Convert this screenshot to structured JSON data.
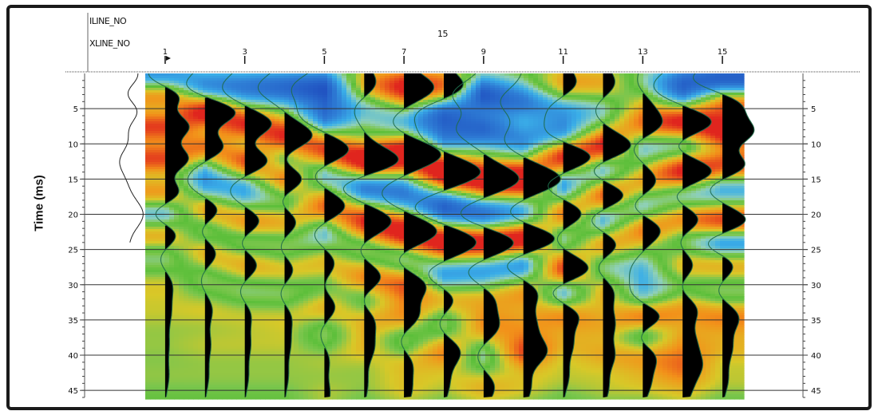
{
  "chart_data": {
    "type": "heatmap",
    "subtype": "seismic-wiggle-variable-area-over-color-section",
    "header": {
      "row1_label": "ILINE_NO",
      "row2_label": "XLINE_NO",
      "iline_value": "15"
    },
    "ylabel": "Time (ms)",
    "y_axis": {
      "reversed": true,
      "range": [
        0,
        46
      ],
      "ticks": [
        5,
        10,
        15,
        20,
        25,
        30,
        35,
        40,
        45
      ],
      "minor_step": 1
    },
    "x_axis": {
      "traces": [
        1,
        2,
        3,
        4,
        5,
        6,
        7,
        8,
        9,
        10,
        11,
        12,
        13,
        14,
        15
      ],
      "tick_labels": [
        "1",
        "3",
        "5",
        "7",
        "9",
        "11",
        "13",
        "15"
      ]
    },
    "gridlines": true,
    "wavelet_width_ms": 2.6,
    "colors": {
      "background": "#5cbf3a",
      "positive": "#f2921a",
      "positive_strong": "#e0251e",
      "negative": "#3aaee8",
      "negative_strong": "#1a3fb8",
      "fill": "#000000",
      "trace": "#1f6b4a"
    },
    "traces": [
      {
        "trace": 1,
        "events": [
          [
            1,
            -0.8
          ],
          [
            3,
            1.0
          ],
          [
            5,
            -0.5
          ],
          [
            7.5,
            0.9
          ],
          [
            10,
            -0.4
          ],
          [
            12,
            0.9
          ],
          [
            14.5,
            -0.3
          ],
          [
            17,
            0.6
          ],
          [
            20,
            -0.6
          ],
          [
            22.5,
            0.5
          ],
          [
            26,
            -0.2
          ],
          [
            30,
            0.2
          ],
          [
            34,
            0.15
          ],
          [
            38.5,
            0.1
          ],
          [
            43,
            0.1
          ]
        ]
      },
      {
        "trace": 2,
        "events": [
          [
            2,
            -0.6
          ],
          [
            5.5,
            1.0
          ],
          [
            8,
            -0.3
          ],
          [
            10.5,
            0.7
          ],
          [
            13,
            -0.3
          ],
          [
            16,
            -0.4
          ],
          [
            19.5,
            0.5
          ],
          [
            22,
            -0.3
          ],
          [
            25.5,
            0.35
          ],
          [
            29,
            -0.15
          ],
          [
            33.5,
            0.2
          ],
          [
            38.5,
            0.15
          ],
          [
            43,
            0.1
          ]
        ]
      },
      {
        "trace": 3,
        "events": [
          [
            2,
            -0.6
          ],
          [
            7.5,
            0.9
          ],
          [
            9.5,
            -0.4
          ],
          [
            12.5,
            0.8
          ],
          [
            15,
            -0.3
          ],
          [
            17.5,
            -0.3
          ],
          [
            21,
            0.5
          ],
          [
            24,
            -0.3
          ],
          [
            27,
            0.4
          ],
          [
            31,
            -0.2
          ],
          [
            34,
            0.2
          ],
          [
            38.5,
            0.15
          ],
          [
            43,
            0.1
          ]
        ]
      },
      {
        "trace": 4,
        "events": [
          [
            2,
            -0.7
          ],
          [
            9,
            0.8
          ],
          [
            12,
            -0.3
          ],
          [
            15,
            0.6
          ],
          [
            18,
            -0.3
          ],
          [
            21,
            0.4
          ],
          [
            24.5,
            -0.2
          ],
          [
            28,
            0.3
          ],
          [
            31,
            -0.2
          ],
          [
            34.5,
            0.2
          ],
          [
            38.5,
            0.15
          ],
          [
            43,
            0.1
          ]
        ]
      },
      {
        "trace": 5,
        "events": [
          [
            2,
            -0.8
          ],
          [
            6,
            -0.6
          ],
          [
            11,
            0.75
          ],
          [
            14,
            -0.4
          ],
          [
            19,
            0.6
          ],
          [
            22.5,
            -0.35
          ],
          [
            27,
            0.3
          ],
          [
            30.5,
            -0.15
          ],
          [
            33,
            0.35
          ],
          [
            37,
            -0.15
          ],
          [
            40.5,
            0.15
          ],
          [
            45.5,
            0.15
          ]
        ]
      },
      {
        "trace": 6,
        "events": [
          [
            1.5,
            0.35
          ],
          [
            5,
            -0.3
          ],
          [
            12.5,
            1.0
          ],
          [
            16,
            -0.7
          ],
          [
            21,
            0.75
          ],
          [
            25,
            -0.2
          ],
          [
            29,
            0.5
          ],
          [
            32,
            -0.2
          ],
          [
            35,
            0.3
          ],
          [
            39,
            0.25
          ],
          [
            44,
            0.1
          ]
        ]
      },
      {
        "trace": 7,
        "events": [
          [
            2,
            0.8
          ],
          [
            7,
            -0.35
          ],
          [
            11.5,
            1.0
          ],
          [
            17,
            -0.6
          ],
          [
            22.5,
            0.9
          ],
          [
            26.5,
            -0.3
          ],
          [
            30,
            0.6
          ],
          [
            34.5,
            0.4
          ],
          [
            38,
            -0.2
          ],
          [
            41,
            0.25
          ],
          [
            45,
            0.2
          ]
        ]
      },
      {
        "trace": 8,
        "events": [
          [
            2,
            0.6
          ],
          [
            5.5,
            -0.7
          ],
          [
            9,
            -0.5
          ],
          [
            14,
            1.0
          ],
          [
            19,
            -0.8
          ],
          [
            24,
            0.9
          ],
          [
            28.5,
            -0.5
          ],
          [
            32,
            0.35
          ],
          [
            35.5,
            -0.2
          ],
          [
            39.5,
            0.45
          ],
          [
            44,
            0.15
          ]
        ]
      },
      {
        "trace": 9,
        "events": [
          [
            3,
            -0.8
          ],
          [
            8,
            -0.7
          ],
          [
            15,
            0.95
          ],
          [
            20,
            -0.7
          ],
          [
            24,
            0.9
          ],
          [
            28,
            -0.5
          ],
          [
            32,
            0.3
          ],
          [
            36,
            0.4
          ],
          [
            40,
            -0.2
          ],
          [
            44.5,
            0.3
          ]
        ]
      },
      {
        "trace": 10,
        "events": [
          [
            4,
            -0.6
          ],
          [
            9.5,
            -0.5
          ],
          [
            15,
            1.0
          ],
          [
            20,
            -0.5
          ],
          [
            23.5,
            1.0
          ],
          [
            27,
            -0.6
          ],
          [
            31,
            0.4
          ],
          [
            35.5,
            0.3
          ],
          [
            39.5,
            0.6
          ],
          [
            44.5,
            0.2
          ]
        ]
      },
      {
        "trace": 11,
        "events": [
          [
            1.5,
            0.4
          ],
          [
            5,
            -0.4
          ],
          [
            9,
            -0.6
          ],
          [
            11.5,
            0.95
          ],
          [
            16,
            -0.5
          ],
          [
            20,
            0.6
          ],
          [
            23,
            -0.3
          ],
          [
            28,
            0.8
          ],
          [
            31,
            -0.6
          ],
          [
            34,
            0.5
          ],
          [
            38.5,
            0.25
          ],
          [
            43,
            0.15
          ]
        ]
      },
      {
        "trace": 12,
        "events": [
          [
            1.5,
            0.35
          ],
          [
            5,
            -0.25
          ],
          [
            10.5,
            0.85
          ],
          [
            13.5,
            -0.5
          ],
          [
            17.5,
            0.7
          ],
          [
            20.5,
            -0.5
          ],
          [
            24.5,
            0.5
          ],
          [
            27,
            -0.3
          ],
          [
            31,
            0.3
          ],
          [
            35.5,
            0.3
          ],
          [
            40,
            0.3
          ],
          [
            44.5,
            0.15
          ]
        ]
      },
      {
        "trace": 13,
        "events": [
          [
            2,
            -0.3
          ],
          [
            3.5,
            0.3
          ],
          [
            7.5,
            0.6
          ],
          [
            10,
            -0.4
          ],
          [
            15.5,
            0.4
          ],
          [
            19,
            -0.4
          ],
          [
            22,
            0.55
          ],
          [
            28,
            -0.3
          ],
          [
            32,
            -0.4
          ],
          [
            34.5,
            0.75
          ],
          [
            37,
            -0.4
          ],
          [
            40,
            0.4
          ],
          [
            44,
            0.2
          ]
        ]
      },
      {
        "trace": 14,
        "events": [
          [
            1,
            -0.5
          ],
          [
            3,
            -0.4
          ],
          [
            7,
            0.9
          ],
          [
            10,
            -0.4
          ],
          [
            14,
            0.9
          ],
          [
            17,
            -0.4
          ],
          [
            21,
            0.6
          ],
          [
            23,
            -0.3
          ],
          [
            27.5,
            0.35
          ],
          [
            30,
            -0.2
          ],
          [
            33.5,
            0.4
          ],
          [
            38,
            0.3
          ],
          [
            41.5,
            0.45
          ],
          [
            45,
            0.2
          ]
        ]
      },
      {
        "trace": 15,
        "events": [
          [
            1,
            -0.9
          ],
          [
            4,
            0.6
          ],
          [
            8.5,
            0.9
          ],
          [
            11,
            -0.4
          ],
          [
            13,
            0.9
          ],
          [
            16,
            -0.5
          ],
          [
            21.5,
            1.0
          ],
          [
            23.5,
            -0.9
          ],
          [
            27,
            0.4
          ],
          [
            31,
            -0.2
          ],
          [
            34.5,
            0.45
          ],
          [
            39,
            0.25
          ],
          [
            43.5,
            0.15
          ]
        ]
      }
    ],
    "outside_trace": {
      "trace": 0,
      "events": [
        [
          1,
          0.4
        ],
        [
          3,
          -0.5
        ],
        [
          5,
          0.5
        ],
        [
          7.5,
          -0.2
        ],
        [
          10,
          0.2
        ],
        [
          12,
          -0.3
        ],
        [
          20,
          0.35
        ]
      ]
    }
  }
}
